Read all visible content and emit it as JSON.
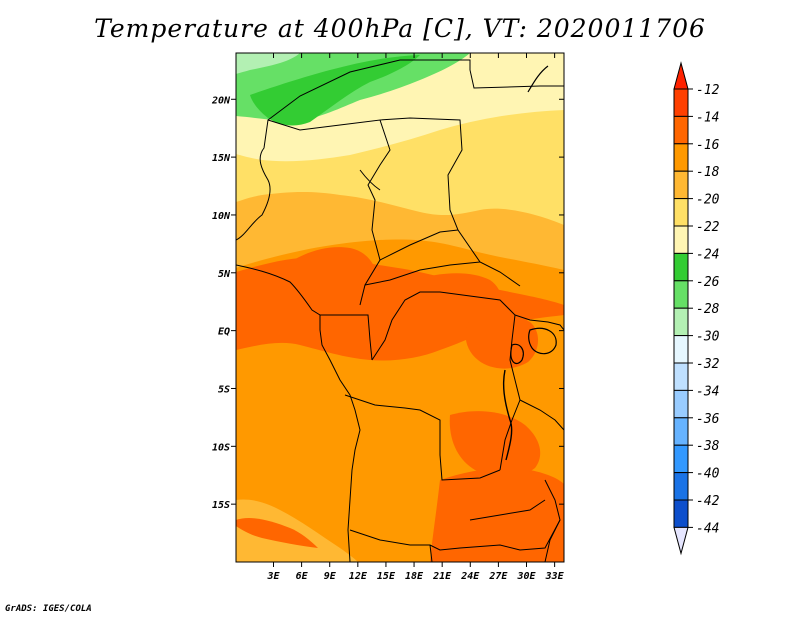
{
  "title": "Temperature at 400hPa [C], VT: 2020011706",
  "credit": "GrADS: IGES/COLA",
  "map": {
    "lon_range_deg_east": [
      -1,
      34
    ],
    "lat_range_deg_north": [
      -20,
      24
    ],
    "x_tick_labels": [
      "3E",
      "6E",
      "9E",
      "12E",
      "15E",
      "18E",
      "21E",
      "24E",
      "27E",
      "30E",
      "33E"
    ],
    "y_tick_labels": [
      "20N",
      "15N",
      "10N",
      "5N",
      "EQ",
      "5S",
      "10S",
      "15S"
    ]
  },
  "colorbar": {
    "labels": [
      "-12",
      "-14",
      "-16",
      "-18",
      "-20",
      "-22",
      "-24",
      "-26",
      "-28",
      "-30",
      "-32",
      "-34",
      "-36",
      "-38",
      "-40",
      "-42",
      "-44"
    ],
    "colors": [
      "#ff4000",
      "#ff6600",
      "#ff9900",
      "#ffb833",
      "#ffe066",
      "#fff5b3",
      "#33cc33",
      "#66e066",
      "#b3f0b3",
      "#e6f7ff",
      "#bfe0ff",
      "#99ccff",
      "#66b3ff",
      "#3399ff",
      "#1a73e6",
      "#0d4fcc",
      "#0a1a80"
    ],
    "above_color": "#ff2200",
    "below_color": "#e6e6ff"
  }
}
